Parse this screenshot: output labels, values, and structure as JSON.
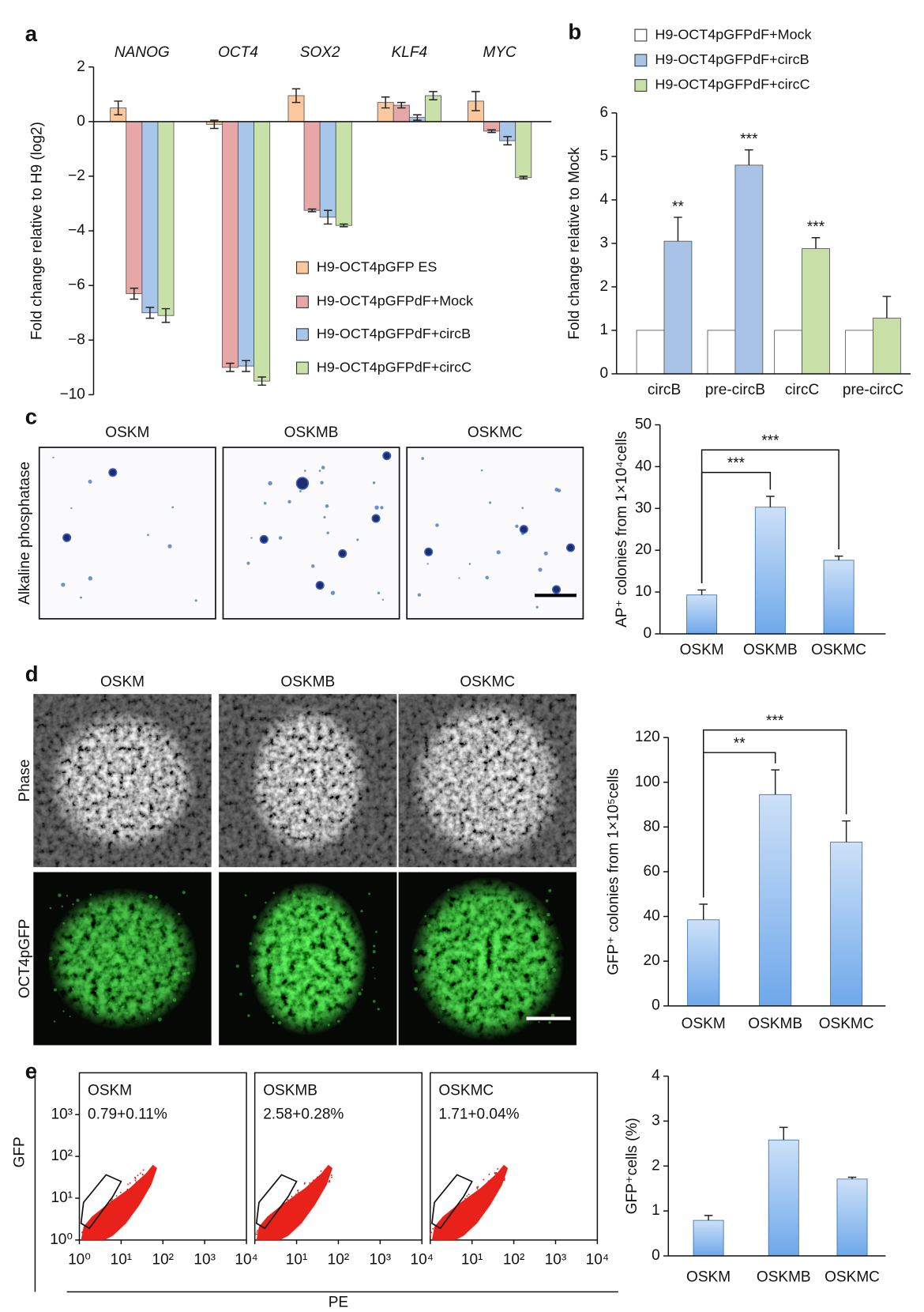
{
  "panel_labels": [
    "a",
    "b",
    "c",
    "d",
    "e"
  ],
  "chart_data": [
    {
      "type": "grouped_bar",
      "y_label": "Fold change relative to H9 (log2)",
      "categories": [
        "NANOG",
        "OCT4",
        "SOX2",
        "KLF4",
        "MYC"
      ],
      "series": [
        {
          "name": "H9-OCT4pGFP ES",
          "color": "#f9c89f",
          "values": [
            0.5,
            -0.1,
            0.95,
            0.7,
            0.75
          ],
          "errors": [
            0.25,
            0.15,
            0.25,
            0.2,
            0.35
          ]
        },
        {
          "name": "H9-OCT4pGFPdF+Mock",
          "color": "#e8a7a7",
          "values": [
            -6.3,
            -9.0,
            -3.25,
            0.6,
            -0.35
          ],
          "errors": [
            0.2,
            0.15,
            0.05,
            0.1,
            0.05
          ]
        },
        {
          "name": "H9-OCT4pGFPdF+circB",
          "color": "#a8c5ea",
          "values": [
            -7.0,
            -8.95,
            -3.5,
            0.15,
            -0.7
          ],
          "errors": [
            0.2,
            0.2,
            0.25,
            0.1,
            0.15
          ]
        },
        {
          "name": "H9-OCT4pGFPdF+circC",
          "color": "#c7e1a9",
          "values": [
            -7.1,
            -9.5,
            -3.8,
            0.95,
            -2.05
          ],
          "errors": [
            0.25,
            0.15,
            0.05,
            0.15,
            0.05
          ]
        }
      ],
      "ylim": [
        -10,
        2
      ],
      "yticks": [
        2,
        0,
        {
          "value": -2,
          "label": "−2"
        },
        {
          "value": -4,
          "label": "−4"
        },
        {
          "value": -6,
          "label": "−6"
        },
        {
          "value": -8,
          "label": "−8"
        },
        {
          "value": -10,
          "label": "−10"
        }
      ],
      "error_bars": "both",
      "legend": "lower right"
    },
    {
      "type": "grouped_bar",
      "y_label": "Fold change relative to Mock",
      "categories": [
        "circB",
        "pre-circB",
        "circC",
        "pre-circC"
      ],
      "series": [
        {
          "name": "H9-OCT4pGFPdF+Mock",
          "color": "#ffffff",
          "values": [
            1,
            1,
            1,
            1
          ]
        },
        {
          "name": "H9-OCT4pGFPdF+circB",
          "color": "#a8c3e6",
          "values": [
            3.05,
            4.8,
            null,
            null
          ],
          "errors": [
            0.55,
            0.35,
            null,
            null
          ]
        },
        {
          "name": "H9-OCT4pGFPdF+circC",
          "color": "#c8e0a8",
          "values": [
            null,
            null,
            2.88,
            1.28
          ],
          "errors": [
            null,
            null,
            0.25,
            0.5
          ]
        }
      ],
      "significance": [
        "**",
        "***",
        "***",
        null
      ],
      "ylim": [
        0,
        6
      ],
      "yticks": [
        0,
        1,
        2,
        3,
        4,
        5,
        6
      ],
      "error_bars": "up",
      "legend": "top"
    },
    {
      "type": "bar",
      "y_label": "AP⁺ colonies from 1×10⁴cells",
      "categories": [
        "OSKM",
        "OSKMB",
        "OSKMC"
      ],
      "values": [
        9.3,
        30.3,
        17.6
      ],
      "errors": [
        1.2,
        2.6,
        1.0
      ],
      "color": "#6fa8ea",
      "ylim": [
        0,
        50
      ],
      "yticks": [
        0,
        10,
        20,
        30,
        40,
        50
      ],
      "error_bars": "up",
      "comparisons": [
        {
          "between": [
            "OSKM",
            "OSKMB"
          ],
          "label": "***"
        },
        {
          "between": [
            "OSKM",
            "OSKMC"
          ],
          "label": "***"
        }
      ]
    },
    {
      "type": "bar",
      "y_label": "GFP⁺ colonies from 1×10⁵cells",
      "categories": [
        "OSKM",
        "OSKMB",
        "OSKMC"
      ],
      "values": [
        38.5,
        94.5,
        73.2
      ],
      "errors": [
        7,
        11,
        9.5
      ],
      "color": "#6fa8ea",
      "ylim": [
        0,
        120
      ],
      "yticks": [
        0,
        20,
        40,
        60,
        80,
        100,
        120
      ],
      "error_bars": "up",
      "comparisons": [
        {
          "between": [
            "OSKM",
            "OSKMB"
          ],
          "label": "**"
        },
        {
          "between": [
            "OSKM",
            "OSKMC"
          ],
          "label": "***"
        }
      ]
    },
    {
      "type": "bar",
      "y_label": "GFP⁺cells (%)",
      "categories": [
        "OSKM",
        "OSKMB",
        "OSKMC"
      ],
      "values": [
        0.79,
        2.58,
        1.71
      ],
      "errors": [
        0.11,
        0.28,
        0.04
      ],
      "color": "#6fa8ea",
      "ylim": [
        0,
        4
      ],
      "yticks": [
        0,
        1,
        2,
        3,
        4
      ],
      "error_bars": "up"
    }
  ],
  "image_panels": [
    {
      "row_labels": [
        "Alkaline phosphatase"
      ],
      "columns": [
        "OSKM",
        "OSKMB",
        "OSKMC"
      ]
    },
    {
      "row_labels": [
        "Phase",
        "OCT4pGFP"
      ],
      "columns": [
        "OSKM",
        "OSKMB",
        "OSKMC"
      ]
    }
  ],
  "flow": {
    "type": "scatter",
    "x_label": "PE",
    "y_label": "GFP",
    "log_scale": true,
    "xlim": [
      1,
      10000
    ],
    "ylim": [
      1,
      10000
    ],
    "xticks": [
      {
        "value": 1,
        "label": "10⁰"
      },
      {
        "value": 10,
        "label": "10¹"
      },
      {
        "value": 100,
        "label": "10²"
      },
      {
        "value": 1000,
        "label": "10³"
      },
      {
        "value": 10000,
        "label": "10⁴"
      }
    ],
    "yticks": [
      {
        "value": 1,
        "label": "10⁰"
      },
      {
        "value": 10,
        "label": "10¹"
      },
      {
        "value": 100,
        "label": "10²"
      },
      {
        "value": 1000,
        "label": "10³"
      }
    ],
    "plots": [
      {
        "name": "OSKM",
        "percent": "0.79+0.11%"
      },
      {
        "name": "OSKMB",
        "percent": "2.58+0.28%"
      },
      {
        "name": "OSKMC",
        "percent": "1.71+0.04%"
      }
    ]
  }
}
